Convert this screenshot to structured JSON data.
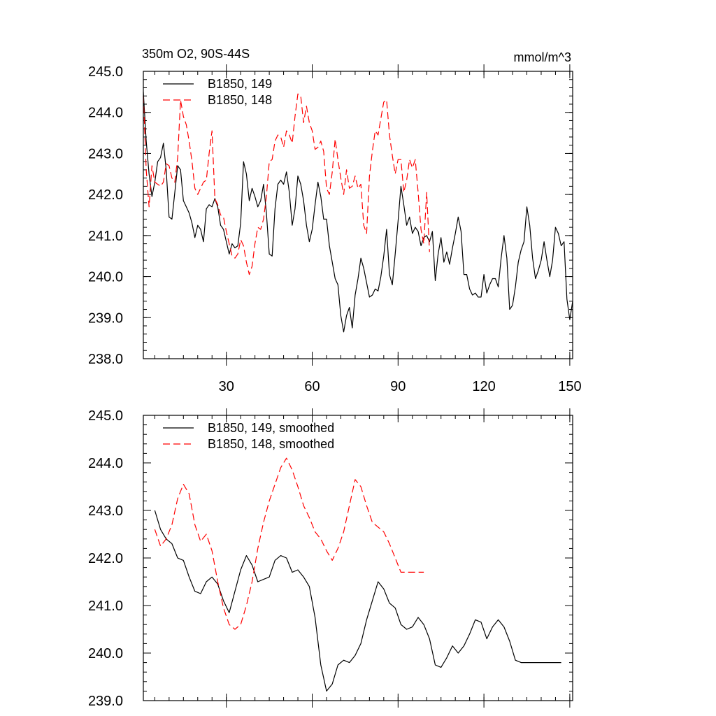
{
  "chart_data": [
    {
      "type": "line",
      "title": "350m O2, 90S-44S",
      "units": "mmol/m^3",
      "xlim": [
        1,
        151
      ],
      "ylim": [
        238.0,
        245.0
      ],
      "x_ticks": [
        30,
        60,
        90,
        120,
        150
      ],
      "x_tick_labels": [
        "30",
        "60",
        "90",
        "120",
        "150"
      ],
      "y_ticks": [
        238.0,
        239.0,
        240.0,
        241.0,
        242.0,
        243.0,
        244.0,
        245.0
      ],
      "y_tick_labels": [
        "238.0",
        "239.0",
        "240.0",
        "241.0",
        "242.0",
        "243.0",
        "244.0",
        "245.0"
      ],
      "legend_position": "top-left",
      "series": [
        {
          "name": "B1850, 149",
          "color": "#000000",
          "dash": "solid",
          "x": [
            1,
            2,
            3,
            4,
            5,
            6,
            7,
            8,
            9,
            10,
            11,
            12,
            13,
            14,
            15,
            16,
            17,
            18,
            19,
            20,
            21,
            22,
            23,
            24,
            25,
            26,
            27,
            28,
            29,
            30,
            31,
            32,
            33,
            34,
            35,
            36,
            37,
            38,
            39,
            40,
            41,
            42,
            43,
            44,
            45,
            46,
            47,
            48,
            49,
            50,
            51,
            52,
            53,
            54,
            55,
            56,
            57,
            58,
            59,
            60,
            61,
            62,
            63,
            64,
            65,
            66,
            67,
            68,
            69,
            70,
            71,
            72,
            73,
            74,
            75,
            76,
            77,
            78,
            79,
            80,
            81,
            82,
            83,
            84,
            85,
            86,
            87,
            88,
            89,
            90,
            91,
            92,
            93,
            94,
            95,
            96,
            97,
            98,
            99,
            100,
            101,
            102,
            103,
            104,
            105,
            106,
            107,
            108,
            109,
            110,
            111,
            112,
            113,
            114,
            115,
            116,
            117,
            118,
            119,
            120,
            121,
            122,
            123,
            124,
            125,
            126,
            127,
            128,
            129,
            130,
            131,
            132,
            133,
            134,
            135,
            136,
            137,
            138,
            139,
            140,
            141,
            142,
            143,
            144,
            145,
            146,
            147,
            148,
            149,
            150,
            151
          ],
          "y": [
            244.5,
            243.3,
            242.5,
            241.95,
            242.3,
            242.8,
            242.9,
            243.25,
            242.6,
            241.45,
            241.4,
            242.05,
            242.7,
            242.6,
            241.85,
            241.7,
            241.55,
            241.3,
            240.95,
            241.25,
            241.15,
            240.85,
            241.65,
            241.75,
            241.7,
            241.9,
            241.7,
            241.25,
            241.15,
            240.85,
            240.55,
            240.8,
            240.7,
            240.75,
            241.3,
            242.8,
            242.5,
            241.85,
            242.15,
            241.95,
            241.7,
            241.85,
            242.25,
            241.55,
            240.55,
            240.5,
            241.65,
            242.25,
            242.35,
            242.25,
            242.55,
            242.05,
            241.25,
            241.65,
            242.45,
            242.25,
            241.85,
            241.25,
            240.85,
            241.15,
            241.75,
            242.3,
            241.95,
            241.4,
            241.4,
            240.75,
            240.35,
            239.95,
            239.8,
            239.05,
            238.65,
            239.05,
            239.25,
            238.75,
            239.55,
            239.95,
            240.45,
            240.2,
            239.85,
            239.5,
            239.55,
            239.7,
            239.65,
            240.0,
            240.5,
            241.15,
            240.05,
            239.8,
            240.55,
            241.35,
            242.2,
            241.75,
            241.25,
            241.45,
            241.05,
            241.2,
            241.1,
            240.75,
            240.95,
            241.0,
            240.85,
            241.1,
            239.9,
            240.55,
            240.95,
            240.35,
            240.6,
            240.3,
            240.7,
            241.05,
            241.45,
            241.1,
            240.05,
            240.05,
            239.7,
            239.55,
            239.6,
            239.5,
            239.5,
            240.05,
            239.6,
            239.8,
            239.95,
            239.95,
            239.75,
            240.45,
            241.0,
            240.45,
            239.2,
            239.3,
            239.75,
            240.35,
            240.65,
            240.85,
            241.7,
            241.25,
            240.45,
            239.95,
            240.15,
            240.4,
            240.85,
            240.4,
            240.0,
            240.4,
            241.2,
            241.05,
            240.75,
            240.85,
            239.45,
            238.95,
            239.4
          ]
        },
        {
          "name": "B1850, 148",
          "color": "#ff0000",
          "dash": "dashed",
          "x": [
            1,
            2,
            3,
            4,
            5,
            6,
            7,
            8,
            9,
            10,
            11,
            12,
            13,
            14,
            15,
            16,
            17,
            18,
            19,
            20,
            21,
            22,
            23,
            24,
            25,
            26,
            27,
            28,
            29,
            30,
            31,
            32,
            33,
            34,
            35,
            36,
            37,
            38,
            39,
            40,
            41,
            42,
            43,
            44,
            45,
            46,
            47,
            48,
            49,
            50,
            51,
            52,
            53,
            54,
            55,
            56,
            57,
            58,
            59,
            60,
            61,
            62,
            63,
            64,
            65,
            66,
            67,
            68,
            69,
            70,
            71,
            72,
            73,
            74,
            75,
            76,
            77,
            78,
            79,
            80,
            81,
            82,
            83,
            84,
            85,
            86,
            87,
            88,
            89,
            90,
            91,
            92,
            93,
            94,
            95,
            96,
            97,
            98,
            99,
            100,
            101
          ],
          "y": [
            244.4,
            242.6,
            241.7,
            242.7,
            242.3,
            242.25,
            242.2,
            242.3,
            242.75,
            242.7,
            242.4,
            242.3,
            242.9,
            244.3,
            243.9,
            243.7,
            243.3,
            242.8,
            242.15,
            242.0,
            242.15,
            242.3,
            242.35,
            243.0,
            243.55,
            241.9,
            241.75,
            241.5,
            241.45,
            241.1,
            240.8,
            240.5,
            240.45,
            240.55,
            240.9,
            240.75,
            240.35,
            240.05,
            240.25,
            240.8,
            241.2,
            241.15,
            241.4,
            241.95,
            242.8,
            242.85,
            243.3,
            243.45,
            243.4,
            243.15,
            243.55,
            243.45,
            243.25,
            243.9,
            244.45,
            244.4,
            243.75,
            244.15,
            243.75,
            243.55,
            243.1,
            243.15,
            243.3,
            243.05,
            242.15,
            242.0,
            242.55,
            243.35,
            242.85,
            242.4,
            242.0,
            242.6,
            242.15,
            242.2,
            242.45,
            242.15,
            242.25,
            241.25,
            241.05,
            242.45,
            243.05,
            243.55,
            243.45,
            243.85,
            244.25,
            244.3,
            243.45,
            242.95,
            242.5,
            242.85,
            242.85,
            242.05,
            242.35,
            242.85,
            242.65,
            242.85,
            242.05,
            241.15,
            240.8,
            242.05,
            240.6
          ]
        }
      ]
    },
    {
      "type": "line",
      "xlim": [
        1,
        151
      ],
      "ylim": [
        239.0,
        245.0
      ],
      "x_ticks": [
        30,
        60,
        90,
        120,
        150
      ],
      "y_ticks": [
        239.0,
        240.0,
        241.0,
        242.0,
        243.0,
        244.0,
        245.0
      ],
      "y_tick_labels": [
        "239.0",
        "240.0",
        "241.0",
        "242.0",
        "243.0",
        "244.0",
        "245.0"
      ],
      "legend_position": "top-left",
      "series": [
        {
          "name": "B1850, 149, smoothed",
          "color": "#000000",
          "dash": "solid",
          "x": [
            5,
            7,
            9,
            11,
            13,
            15,
            17,
            19,
            21,
            23,
            25,
            27,
            29,
            31,
            33,
            35,
            37,
            39,
            41,
            43,
            45,
            47,
            49,
            51,
            53,
            55,
            57,
            59,
            61,
            63,
            65,
            67,
            69,
            71,
            73,
            75,
            77,
            79,
            81,
            83,
            85,
            87,
            89,
            91,
            93,
            95,
            97,
            99,
            101,
            103,
            105,
            107,
            109,
            111,
            113,
            115,
            117,
            119,
            121,
            123,
            125,
            127,
            129,
            131,
            133,
            135,
            137,
            139,
            141,
            143,
            145,
            147
          ],
          "y": [
            243.0,
            242.6,
            242.4,
            242.3,
            242.0,
            241.95,
            241.6,
            241.3,
            241.25,
            241.5,
            241.6,
            241.45,
            241.1,
            240.85,
            241.3,
            241.75,
            242.05,
            241.85,
            241.5,
            241.55,
            241.6,
            241.95,
            242.05,
            242.0,
            241.7,
            241.75,
            241.6,
            241.4,
            240.75,
            239.75,
            239.2,
            239.35,
            239.75,
            239.85,
            239.8,
            239.95,
            240.2,
            240.7,
            241.1,
            241.5,
            241.35,
            241.05,
            240.95,
            240.6,
            240.5,
            240.55,
            240.75,
            240.6,
            240.3,
            239.75,
            239.7,
            239.9,
            240.15,
            240.0,
            240.15,
            240.4,
            240.7,
            240.65,
            240.3,
            240.55,
            240.7,
            240.55,
            240.25,
            239.85,
            239.8,
            239.8,
            239.8,
            239.8,
            239.8,
            239.8,
            239.8,
            239.8
          ]
        },
        {
          "name": "B1850, 148, smoothed",
          "color": "#ff0000",
          "dash": "dashed",
          "x": [
            5,
            7,
            9,
            11,
            13,
            15,
            17,
            19,
            21,
            23,
            25,
            27,
            29,
            31,
            33,
            35,
            37,
            39,
            41,
            43,
            45,
            47,
            49,
            51,
            53,
            55,
            57,
            59,
            61,
            63,
            65,
            67,
            69,
            71,
            73,
            75,
            77,
            79,
            81,
            83,
            85,
            87,
            89,
            91,
            93,
            95,
            97,
            99
          ],
          "y": [
            242.6,
            242.25,
            242.4,
            242.7,
            243.25,
            243.55,
            243.35,
            242.7,
            242.35,
            242.5,
            242.15,
            241.5,
            240.95,
            240.6,
            240.5,
            240.6,
            241.0,
            241.5,
            242.2,
            242.75,
            243.2,
            243.55,
            243.9,
            244.1,
            243.85,
            243.5,
            243.1,
            242.85,
            242.55,
            242.4,
            242.15,
            241.95,
            242.2,
            242.55,
            243.1,
            243.65,
            243.5,
            243.1,
            242.75,
            242.65,
            242.55,
            242.3,
            242.0,
            241.7,
            241.7,
            241.7,
            241.7,
            241.7
          ]
        }
      ]
    }
  ]
}
